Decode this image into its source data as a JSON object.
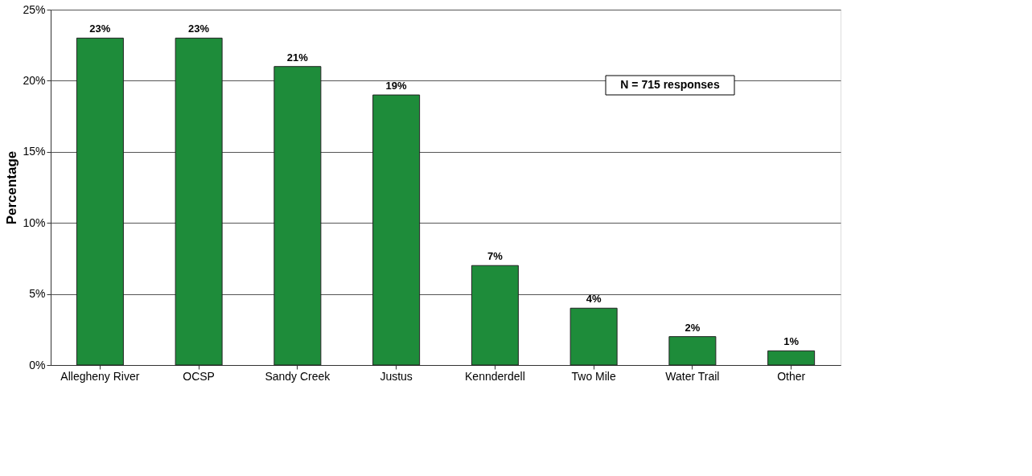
{
  "chart_data": {
    "type": "bar",
    "ylabel": "Percentage",
    "categories": [
      "Allegheny River",
      "OCSP",
      "Sandy Creek",
      "Justus",
      "Kennderdell",
      "Two Mile",
      "Water Trail",
      "Other"
    ],
    "values": [
      23,
      23,
      21,
      19,
      7,
      4,
      2,
      1
    ],
    "color": "#1e8c3a",
    "ylim": [
      0,
      25
    ],
    "yticks": [
      {
        "value": 0,
        "label": "0%"
      },
      {
        "value": 5,
        "label": "5%"
      },
      {
        "value": 10,
        "label": "10%"
      },
      {
        "value": 15,
        "label": "15%"
      },
      {
        "value": 20,
        "label": "20%"
      },
      {
        "value": 25,
        "label": "25%"
      }
    ],
    "value_labels": [
      "23%",
      "23%",
      "21%",
      "19%",
      "7%",
      "4%",
      "2%",
      "1%"
    ],
    "grid": "y",
    "annotations": [
      "N = 715 responses"
    ]
  }
}
